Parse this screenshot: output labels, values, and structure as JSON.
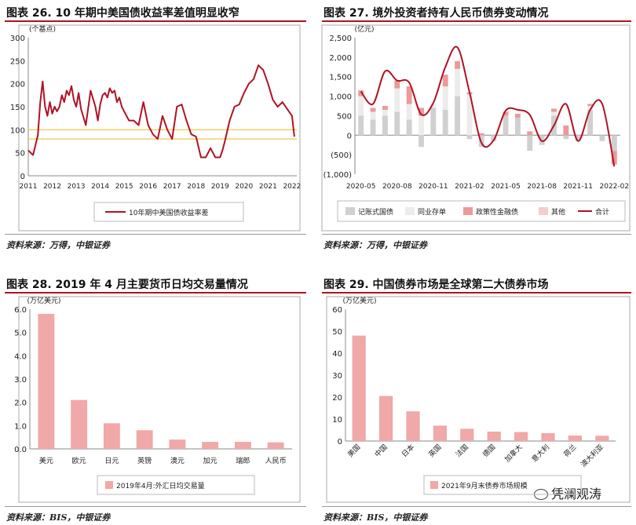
{
  "panels": [
    {
      "title": "图表 26. 10 年期中美国债收益率差值明显收窄",
      "source": "资料来源：万得，中银证券"
    },
    {
      "title": "图表 27. 境外投资者持有人民币债券变动情况",
      "source": "资料来源：万得，中银证券"
    },
    {
      "title": "图表 28. 2019 年 4 月主要货币日均交易量情况",
      "source": "资料来源：BIS，中银证券"
    },
    {
      "title": "图表 29. 中国债券市场是全球第二大债券市场",
      "source": "资料来源：BIS，中银证券"
    }
  ],
  "watermark": "凭澜观涛",
  "chart_data": [
    {
      "type": "line",
      "ylabel": "(个基点)",
      "ylim": [
        0,
        300
      ],
      "yticks": [
        "0",
        "50",
        "100",
        "150",
        "200",
        "250",
        "300"
      ],
      "x_ticks": [
        "2011",
        "2012",
        "2013",
        "2014",
        "2015",
        "2016",
        "2017",
        "2018",
        "2019",
        "2020",
        "2021",
        "2022"
      ],
      "reference_lines": [
        100,
        80
      ],
      "series": [
        {
          "name": "10年期中美国债收益率差",
          "color": "#b01226",
          "x": [
            2011.0,
            2011.2,
            2011.4,
            2011.5,
            2011.6,
            2011.7,
            2011.8,
            2011.9,
            2012.0,
            2012.1,
            2012.2,
            2012.3,
            2012.4,
            2012.5,
            2012.6,
            2012.7,
            2012.8,
            2012.9,
            2013.0,
            2013.1,
            2013.2,
            2013.4,
            2013.6,
            2013.8,
            2013.9,
            2014.0,
            2014.1,
            2014.2,
            2014.3,
            2014.4,
            2014.5,
            2014.6,
            2014.7,
            2014.8,
            2014.9,
            2015.0,
            2015.2,
            2015.4,
            2015.6,
            2015.8,
            2016.0,
            2016.2,
            2016.4,
            2016.6,
            2016.8,
            2017.0,
            2017.2,
            2017.4,
            2017.6,
            2017.8,
            2018.0,
            2018.2,
            2018.4,
            2018.6,
            2018.8,
            2019.0,
            2019.1,
            2019.2,
            2019.4,
            2019.6,
            2019.8,
            2020.0,
            2020.2,
            2020.4,
            2020.6,
            2020.8,
            2021.0,
            2021.2,
            2021.4,
            2021.6,
            2021.8,
            2022.0,
            2022.1
          ],
          "y": [
            55,
            45,
            88,
            160,
            205,
            150,
            130,
            160,
            135,
            150,
            140,
            150,
            175,
            160,
            185,
            175,
            195,
            165,
            150,
            180,
            145,
            110,
            185,
            150,
            120,
            155,
            175,
            180,
            170,
            190,
            180,
            185,
            160,
            170,
            150,
            140,
            120,
            120,
            110,
            160,
            110,
            90,
            80,
            130,
            100,
            80,
            150,
            155,
            120,
            90,
            85,
            40,
            40,
            60,
            40,
            40,
            55,
            75,
            120,
            150,
            155,
            180,
            200,
            210,
            240,
            230,
            200,
            165,
            150,
            160,
            145,
            130,
            85
          ]
        }
      ]
    },
    {
      "type": "bar",
      "ylabel": "(亿元)",
      "ylim": [
        -1000,
        2500
      ],
      "yticks": [
        "(1,000)",
        "(500)",
        "0",
        "500",
        "1,000",
        "1,500",
        "2,000",
        "2,500"
      ],
      "x_ticks": [
        "2020-05",
        "2020-08",
        "2020-11",
        "2021-02",
        "2021-05",
        "2021-08",
        "2021-11",
        "2022-02"
      ],
      "categories": [
        "2020-05",
        "2020-06",
        "2020-07",
        "2020-08",
        "2020-09",
        "2020-10",
        "2020-11",
        "2020-12",
        "2021-01",
        "2021-02",
        "2021-03",
        "2021-04",
        "2021-05",
        "2021-06",
        "2021-07",
        "2021-08",
        "2021-09",
        "2021-10",
        "2021-11",
        "2021-12",
        "2022-01",
        "2022-02"
      ],
      "series": [
        {
          "name": "记账式国债",
          "color": "#d0d0d0",
          "values": [
            500,
            400,
            500,
            600,
            400,
            -300,
            700,
            650,
            1000,
            -100,
            -300,
            -150,
            500,
            450,
            -400,
            -250,
            500,
            -100,
            -150,
            650,
            -150,
            -400
          ]
        },
        {
          "name": "同业存单",
          "color": "#ececec",
          "values": [
            500,
            200,
            150,
            600,
            400,
            500,
            100,
            600,
            700,
            1050,
            0,
            0,
            0,
            0,
            0,
            0,
            100,
            0,
            0,
            100,
            0,
            0
          ]
        },
        {
          "name": "政策性金融债",
          "color": "#ec9999",
          "values": [
            150,
            100,
            100,
            200,
            450,
            200,
            0,
            300,
            200,
            50,
            50,
            0,
            100,
            100,
            100,
            0,
            80,
            250,
            0,
            50,
            0,
            -350
          ]
        },
        {
          "name": "其他",
          "color": "#f6cccc",
          "values": [
            0,
            0,
            0,
            0,
            0,
            0,
            0,
            0,
            0,
            0,
            0,
            0,
            0,
            0,
            0,
            0,
            0,
            0,
            0,
            0,
            0,
            0
          ]
        },
        {
          "name": "合计",
          "type": "line",
          "color": "#b01226",
          "values": [
            1120,
            800,
            1640,
            1400,
            1350,
            530,
            830,
            1750,
            2250,
            1100,
            -200,
            -130,
            630,
            650,
            520,
            -150,
            250,
            800,
            -150,
            650,
            800,
            -800
          ]
        }
      ]
    },
    {
      "type": "bar",
      "ylabel": "(万亿美元)",
      "ylim": [
        0,
        6
      ],
      "yticks": [
        "0.0",
        "1.0",
        "2.0",
        "3.0",
        "4.0",
        "5.0",
        "6.0"
      ],
      "categories": [
        "美元",
        "欧元",
        "日元",
        "英镑",
        "澳元",
        "加元",
        "瑞郎",
        "人民币"
      ],
      "series": [
        {
          "name": "2019年4月:外汇日均交易量",
          "color": "#f0a8a8",
          "values": [
            5.8,
            2.1,
            1.1,
            0.8,
            0.4,
            0.3,
            0.3,
            0.28
          ]
        }
      ]
    },
    {
      "type": "bar",
      "ylim": [
        0,
        60
      ],
      "ylabel": "(万亿美元)",
      "yticks": [
        "0",
        "10",
        "20",
        "30",
        "40",
        "50",
        "60"
      ],
      "categories": [
        "美国",
        "中国",
        "日本",
        "英国",
        "法国",
        "德国",
        "加拿大",
        "意大利",
        "荷兰",
        "澳大利亚"
      ],
      "series": [
        {
          "name": "2021年9月末债券市场规模",
          "color": "#f0a8a8",
          "values": [
            48,
            20.5,
            13.5,
            7,
            5.6,
            4.3,
            4.1,
            3.6,
            2.5,
            2.4
          ]
        }
      ]
    }
  ]
}
